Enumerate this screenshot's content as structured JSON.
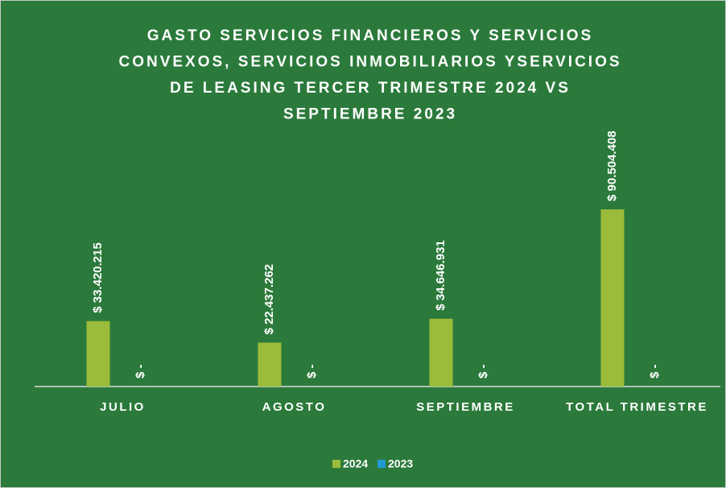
{
  "chart_data": {
    "type": "bar",
    "title": [
      "GASTO SERVICIOS FINANCIEROS Y SERVICIOS",
      "CONVEXOS, SERVICIOS INMOBILIARIOS YSERVICIOS",
      "DE LEASING TERCER TRIMESTRE 2024 VS",
      "SEPTIEMBRE  2023"
    ],
    "categories": [
      "JULIO",
      "AGOSTO",
      "SEPTIEMBRE",
      "TOTAL TRIMESTRE"
    ],
    "series": [
      {
        "name": "2024",
        "color": "#9bbb3b",
        "values": [
          33420215,
          22437262,
          34646931,
          90504408
        ],
        "value_labels": [
          "$ 33.420.215",
          "$ 22.437.262",
          "$ 34.646.931",
          "$ 90.504.408"
        ]
      },
      {
        "name": "2023",
        "color": "#1f9bd1",
        "values": [
          0,
          0,
          0,
          0
        ],
        "value_labels": [
          "$ -",
          "$ -",
          "$ -",
          "$ -"
        ]
      }
    ],
    "legend": "bottom"
  }
}
